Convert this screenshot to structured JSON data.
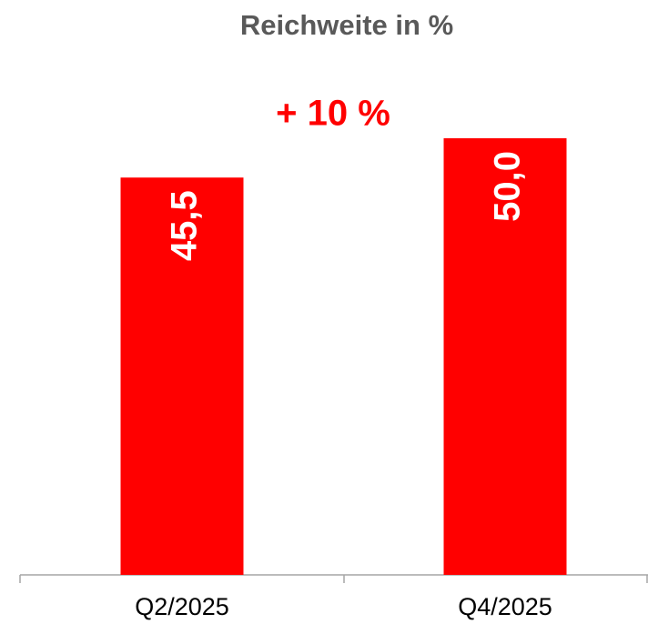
{
  "chart_data": {
    "type": "bar",
    "title": "Reichweite in %",
    "annotation": "+ 10 %",
    "categories": [
      "Q2/2025",
      "Q4/2025"
    ],
    "values": [
      45.5,
      50.0
    ],
    "value_labels": [
      "45,5",
      "50,0"
    ],
    "color": "#ff0000",
    "ylim": [
      0,
      55
    ]
  }
}
